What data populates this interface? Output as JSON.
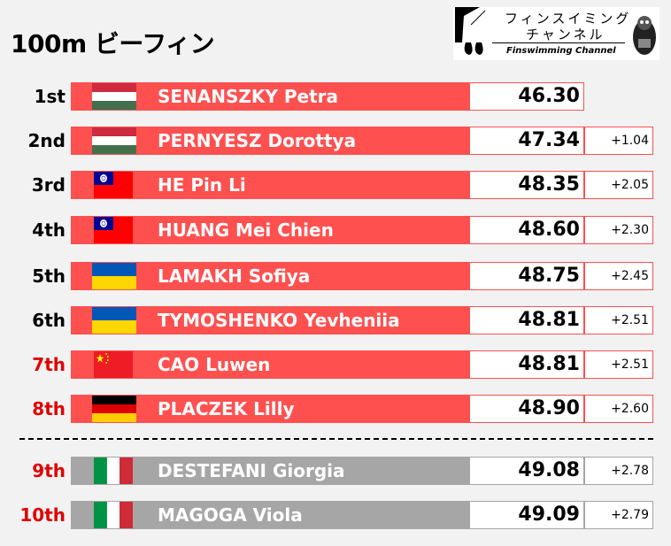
{
  "title": "100m ビーフィン",
  "logo": {
    "line1": "フィンスイミング",
    "line2": "チャンネル",
    "subtitle": "Finswimming Channel"
  },
  "colors": {
    "finalist_bar": "#ff5050",
    "other_bar": "#a6a6a6",
    "rank_red": "#e00000"
  },
  "results": [
    {
      "rank": "1st",
      "flag": "hungary-flag",
      "name": "SENANSZKY Petra",
      "time": "46.30",
      "diff": ""
    },
    {
      "rank": "2nd",
      "flag": "hungary-flag",
      "name": "PERNYESZ Dorottya",
      "time": "47.34",
      "diff": "+1.04"
    },
    {
      "rank": "3rd",
      "flag": "taiwan-flag",
      "name": "HE Pin Li",
      "time": "48.35",
      "diff": "+2.05"
    },
    {
      "rank": "4th",
      "flag": "taiwan-flag",
      "name": "HUANG Mei Chien",
      "time": "48.60",
      "diff": "+2.30"
    },
    {
      "rank": "5th",
      "flag": "ukraine-flag",
      "name": "LAMAKH Sofiya",
      "time": "48.75",
      "diff": "+2.45"
    },
    {
      "rank": "6th",
      "flag": "ukraine-flag",
      "name": "TYMOSHENKO Yevheniia",
      "time": "48.81",
      "diff": "+2.51"
    },
    {
      "rank": "7th",
      "flag": "china-flag",
      "name": "CAO Luwen",
      "time": "48.81",
      "diff": "+2.51"
    },
    {
      "rank": "8th",
      "flag": "germany-flag",
      "name": "PLACZEK Lilly",
      "time": "48.90",
      "diff": "+2.60"
    },
    {
      "rank": "9th",
      "flag": "italy-flag",
      "name": "DESTEFANI Giorgia",
      "time": "49.08",
      "diff": "+2.78"
    },
    {
      "rank": "10th",
      "flag": "italy-flag",
      "name": "MAGOGA Viola",
      "time": "49.09",
      "diff": "+2.79"
    }
  ]
}
